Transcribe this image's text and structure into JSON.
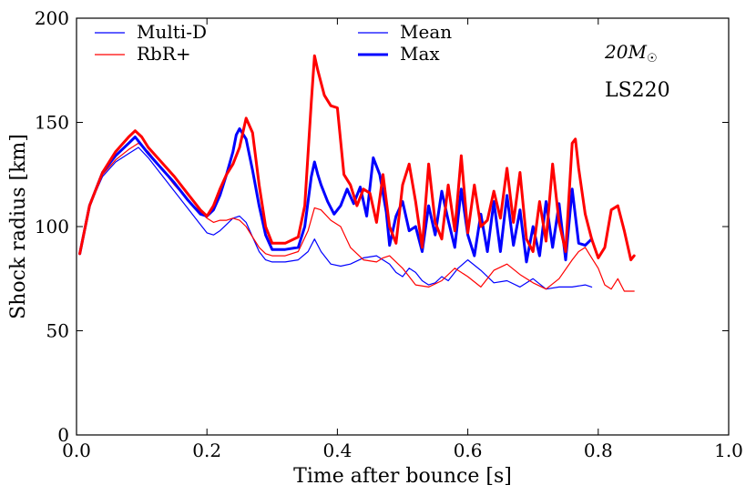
{
  "chart_data": {
    "type": "line",
    "title": "",
    "xlabel": "Time after bounce [s]",
    "ylabel": "Shock radius [km]",
    "xlim": [
      0.0,
      1.0
    ],
    "ylim": [
      0,
      200
    ],
    "xticks": [
      "0.0",
      "0.2",
      "0.4",
      "0.6",
      "0.8",
      "1.0"
    ],
    "yticks": [
      "0",
      "50",
      "100",
      "150",
      "200"
    ],
    "grid": false,
    "annotations": {
      "mass": "20M☉",
      "mass_base": "20M",
      "mass_sub": "☉",
      "eos": "LS220"
    },
    "legend": {
      "placement": "top",
      "entries": [
        {
          "label": "Multi-D",
          "color": "#0000ff",
          "style": "thin"
        },
        {
          "label": "RbR+",
          "color": "#ff0000",
          "style": "thin"
        },
        {
          "label": "Mean",
          "color": "#0000ff",
          "style": "thin"
        },
        {
          "label": "Max",
          "color": "#0000ff",
          "style": "thick"
        }
      ]
    },
    "series": [
      {
        "name": "Multi-D Mean",
        "color": "#0000ff",
        "width": 1.2,
        "x": [
          0.005,
          0.02,
          0.04,
          0.06,
          0.08,
          0.095,
          0.11,
          0.13,
          0.15,
          0.17,
          0.19,
          0.2,
          0.21,
          0.22,
          0.23,
          0.24,
          0.25,
          0.26,
          0.27,
          0.28,
          0.29,
          0.3,
          0.32,
          0.34,
          0.355,
          0.365,
          0.375,
          0.39,
          0.405,
          0.42,
          0.44,
          0.46,
          0.48,
          0.49,
          0.5,
          0.51,
          0.52,
          0.53,
          0.54,
          0.55,
          0.56,
          0.57,
          0.585,
          0.6,
          0.62,
          0.64,
          0.66,
          0.68,
          0.7,
          0.72,
          0.74,
          0.76,
          0.78,
          0.79
        ],
        "y": [
          87,
          110,
          124,
          131,
          135,
          138,
          133,
          125,
          117,
          109,
          101,
          97,
          96,
          98,
          101,
          104,
          105,
          102,
          95,
          88,
          84,
          83,
          83,
          84,
          88,
          94,
          88,
          82,
          81,
          82,
          85,
          86,
          82,
          78,
          76,
          80,
          78,
          74,
          72,
          73,
          76,
          74,
          80,
          84,
          79,
          73,
          74,
          71,
          75,
          70,
          71,
          71,
          72,
          71
        ]
      },
      {
        "name": "RbR+ Mean",
        "color": "#ff0000",
        "width": 1.2,
        "x": [
          0.005,
          0.02,
          0.04,
          0.06,
          0.08,
          0.095,
          0.11,
          0.13,
          0.15,
          0.17,
          0.19,
          0.2,
          0.21,
          0.22,
          0.23,
          0.24,
          0.25,
          0.26,
          0.27,
          0.28,
          0.29,
          0.3,
          0.32,
          0.34,
          0.355,
          0.365,
          0.375,
          0.39,
          0.405,
          0.42,
          0.44,
          0.46,
          0.47,
          0.48,
          0.5,
          0.52,
          0.54,
          0.56,
          0.58,
          0.6,
          0.62,
          0.64,
          0.66,
          0.68,
          0.7,
          0.72,
          0.74,
          0.76,
          0.77,
          0.78,
          0.79,
          0.8,
          0.81,
          0.82,
          0.83,
          0.84,
          0.855
        ],
        "y": [
          87,
          110,
          125,
          132,
          137,
          140,
          136,
          128,
          120,
          113,
          107,
          104,
          102,
          103,
          103,
          104,
          103,
          100,
          95,
          90,
          87,
          86,
          86,
          88,
          98,
          109,
          108,
          103,
          100,
          90,
          84,
          83,
          85,
          86,
          80,
          72,
          71,
          74,
          80,
          76,
          71,
          79,
          82,
          77,
          73,
          70,
          75,
          84,
          88,
          90,
          85,
          80,
          72,
          70,
          75,
          69,
          69
        ]
      },
      {
        "name": "Multi-D Max",
        "color": "#0000ff",
        "width": 3,
        "x": [
          0.005,
          0.02,
          0.04,
          0.06,
          0.08,
          0.09,
          0.1,
          0.11,
          0.13,
          0.15,
          0.17,
          0.19,
          0.2,
          0.21,
          0.22,
          0.23,
          0.24,
          0.245,
          0.25,
          0.26,
          0.27,
          0.28,
          0.29,
          0.3,
          0.32,
          0.34,
          0.35,
          0.36,
          0.365,
          0.37,
          0.375,
          0.385,
          0.395,
          0.405,
          0.415,
          0.425,
          0.435,
          0.445,
          0.455,
          0.465,
          0.475,
          0.48,
          0.49,
          0.5,
          0.51,
          0.52,
          0.53,
          0.54,
          0.55,
          0.56,
          0.57,
          0.58,
          0.59,
          0.6,
          0.61,
          0.62,
          0.63,
          0.64,
          0.65,
          0.66,
          0.67,
          0.68,
          0.69,
          0.7,
          0.71,
          0.72,
          0.73,
          0.74,
          0.75,
          0.76,
          0.77,
          0.78,
          0.79
        ],
        "y": [
          87,
          110,
          126,
          134,
          140,
          143,
          139,
          135,
          128,
          121,
          113,
          106,
          105,
          108,
          115,
          125,
          136,
          144,
          147,
          142,
          127,
          110,
          96,
          89,
          89,
          90,
          100,
          124,
          131,
          125,
          120,
          112,
          106,
          110,
          118,
          111,
          119,
          105,
          133,
          125,
          107,
          91,
          105,
          112,
          98,
          100,
          88,
          110,
          96,
          117,
          103,
          90,
          118,
          96,
          86,
          106,
          88,
          112,
          88,
          115,
          91,
          108,
          83,
          100,
          86,
          112,
          90,
          111,
          84,
          118,
          92,
          91,
          94
        ]
      },
      {
        "name": "RbR+ Max",
        "color": "#ff0000",
        "width": 3,
        "x": [
          0.005,
          0.02,
          0.04,
          0.06,
          0.08,
          0.09,
          0.1,
          0.11,
          0.13,
          0.15,
          0.17,
          0.19,
          0.2,
          0.21,
          0.22,
          0.23,
          0.24,
          0.25,
          0.26,
          0.27,
          0.28,
          0.29,
          0.3,
          0.32,
          0.34,
          0.35,
          0.36,
          0.365,
          0.37,
          0.38,
          0.39,
          0.4,
          0.41,
          0.42,
          0.43,
          0.44,
          0.45,
          0.46,
          0.47,
          0.48,
          0.49,
          0.5,
          0.51,
          0.52,
          0.53,
          0.54,
          0.55,
          0.56,
          0.57,
          0.58,
          0.59,
          0.6,
          0.61,
          0.62,
          0.63,
          0.64,
          0.65,
          0.66,
          0.67,
          0.68,
          0.69,
          0.7,
          0.71,
          0.72,
          0.73,
          0.74,
          0.75,
          0.76,
          0.765,
          0.77,
          0.78,
          0.79,
          0.8,
          0.81,
          0.82,
          0.83,
          0.84,
          0.85,
          0.855
        ],
        "y": [
          87,
          110,
          126,
          136,
          143,
          146,
          143,
          138,
          131,
          124,
          116,
          108,
          105,
          110,
          118,
          125,
          130,
          138,
          152,
          145,
          120,
          100,
          92,
          92,
          95,
          110,
          160,
          182,
          175,
          163,
          158,
          157,
          125,
          120,
          110,
          118,
          116,
          102,
          125,
          100,
          92,
          120,
          130,
          112,
          90,
          130,
          102,
          94,
          120,
          98,
          134,
          97,
          120,
          100,
          103,
          117,
          104,
          128,
          102,
          126,
          94,
          88,
          112,
          93,
          130,
          102,
          88,
          140,
          142,
          128,
          106,
          94,
          85,
          90,
          108,
          110,
          98,
          84,
          86
        ]
      }
    ]
  }
}
